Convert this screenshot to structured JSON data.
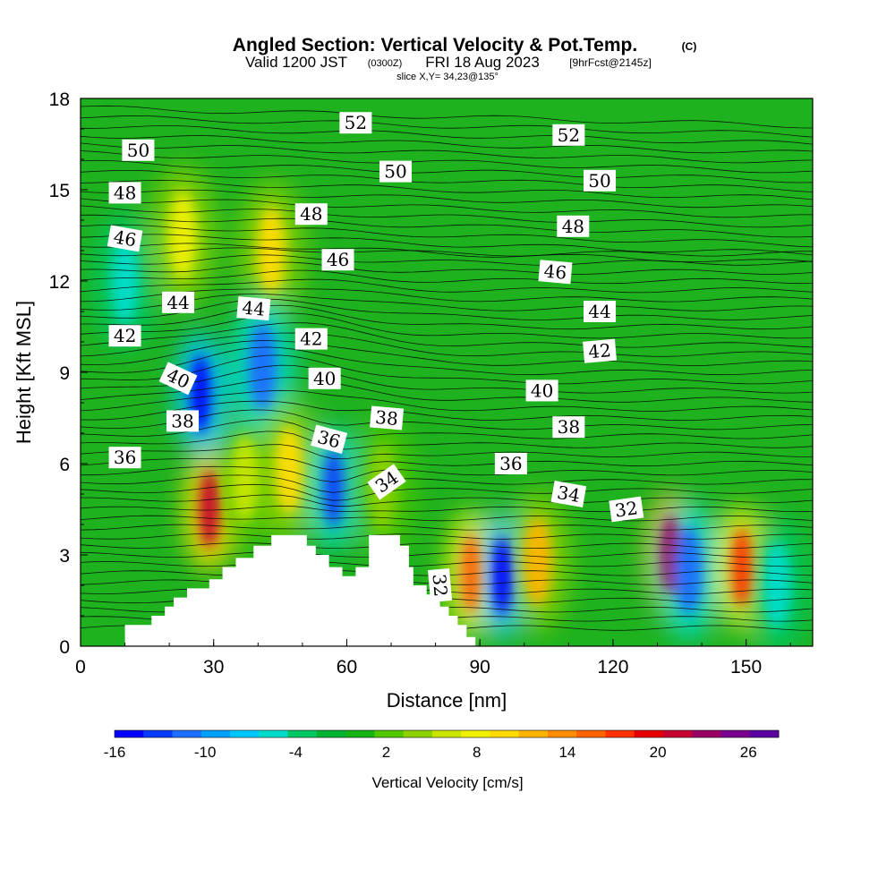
{
  "chart_data": {
    "type": "heatmap",
    "title": "Angled Section: Vertical Velocity & Pot.Temp.",
    "title_tag": "(C)",
    "subtitle_main": "Valid 1200 JST",
    "subtitle_utc": "(0300Z)",
    "subtitle_date": "FRI 18 Aug 2023",
    "subtitle_fcst": "[9hrFcst@2145z]",
    "slice_info": "slice X,Y= 34,23@135°",
    "xlabel": "Distance [nm]",
    "ylabel": "Height [Kft MSL]",
    "xlim": [
      0,
      165
    ],
    "ylim": [
      0,
      18
    ],
    "x_ticks": [
      "0",
      "30",
      "60",
      "90",
      "120",
      "150"
    ],
    "y_ticks": [
      "0",
      "3",
      "6",
      "9",
      "12",
      "15",
      "18"
    ],
    "colorbar": {
      "label": "Vertical Velocity [cm/s]",
      "tick_labels": [
        "-16",
        "-10",
        "-4",
        "2",
        "8",
        "14",
        "20",
        "26"
      ],
      "tick_values": [
        -16,
        -10,
        -4,
        2,
        8,
        14,
        20,
        26
      ],
      "range": [
        -16,
        28
      ],
      "colors": [
        "#0000ff",
        "#0a3cff",
        "#1e6eff",
        "#00a0ff",
        "#00c8ff",
        "#00dccc",
        "#00c864",
        "#00b432",
        "#14b414",
        "#50c800",
        "#8cd200",
        "#c8e600",
        "#f0f000",
        "#ffdc00",
        "#ffb400",
        "#ff8c00",
        "#ff6400",
        "#ff3200",
        "#e60000",
        "#c80032",
        "#9b0064",
        "#78008c",
        "#5a00a0"
      ]
    },
    "vertical_velocity_cells": [
      {
        "x": 10,
        "y": 12,
        "w": -5
      },
      {
        "x": 23,
        "y": 13.5,
        "w": 8
      },
      {
        "x": 29,
        "y": 4.5,
        "w": 22
      },
      {
        "x": 27,
        "y": 8.3,
        "w": -15
      },
      {
        "x": 37,
        "y": 5.5,
        "w": 6
      },
      {
        "x": 43,
        "y": 13,
        "w": 10
      },
      {
        "x": 41,
        "y": 9.2,
        "w": -12
      },
      {
        "x": 47,
        "y": 5.8,
        "w": 9
      },
      {
        "x": 57,
        "y": 5.2,
        "w": -14
      },
      {
        "x": 68,
        "y": 5.2,
        "w": 5
      },
      {
        "x": 88,
        "y": 2.4,
        "w": 16
      },
      {
        "x": 95,
        "y": 2.3,
        "w": -15
      },
      {
        "x": 103,
        "y": 2.8,
        "w": 11
      },
      {
        "x": 133,
        "y": 3,
        "w": 24
      },
      {
        "x": 137,
        "y": 2.5,
        "w": -12
      },
      {
        "x": 149,
        "y": 2.6,
        "w": 18
      },
      {
        "x": 157,
        "y": 2.0,
        "w": -6
      }
    ],
    "theta_labels": [
      {
        "value": "52",
        "x": 62,
        "y": 17.2,
        "rot": 0
      },
      {
        "value": "52",
        "x": 110,
        "y": 16.8,
        "rot": 0
      },
      {
        "value": "50",
        "x": 13,
        "y": 16.3,
        "rot": 0
      },
      {
        "value": "50",
        "x": 71,
        "y": 15.6,
        "rot": 0
      },
      {
        "value": "50",
        "x": 117,
        "y": 15.3,
        "rot": 0
      },
      {
        "value": "48",
        "x": 10,
        "y": 14.9,
        "rot": 0
      },
      {
        "value": "48",
        "x": 52,
        "y": 14.2,
        "rot": 0
      },
      {
        "value": "48",
        "x": 111,
        "y": 13.8,
        "rot": 0
      },
      {
        "value": "46",
        "x": 10,
        "y": 13.4,
        "rot": 10
      },
      {
        "value": "46",
        "x": 58,
        "y": 12.7,
        "rot": 0
      },
      {
        "value": "46",
        "x": 107,
        "y": 12.3,
        "rot": 5
      },
      {
        "value": "44",
        "x": 22,
        "y": 11.3,
        "rot": 0
      },
      {
        "value": "44",
        "x": 39,
        "y": 11.1,
        "rot": 5
      },
      {
        "value": "44",
        "x": 117,
        "y": 11.0,
        "rot": 0
      },
      {
        "value": "42",
        "x": 10,
        "y": 10.2,
        "rot": 0
      },
      {
        "value": "42",
        "x": 52,
        "y": 10.1,
        "rot": 0
      },
      {
        "value": "42",
        "x": 117,
        "y": 9.7,
        "rot": -5
      },
      {
        "value": "40",
        "x": 22,
        "y": 8.8,
        "rot": 25
      },
      {
        "value": "40",
        "x": 55,
        "y": 8.8,
        "rot": 0
      },
      {
        "value": "40",
        "x": 104,
        "y": 8.4,
        "rot": 0
      },
      {
        "value": "38",
        "x": 23,
        "y": 7.4,
        "rot": 0
      },
      {
        "value": "38",
        "x": 69,
        "y": 7.5,
        "rot": 5
      },
      {
        "value": "38",
        "x": 110,
        "y": 7.2,
        "rot": 0
      },
      {
        "value": "36",
        "x": 10,
        "y": 6.2,
        "rot": 0
      },
      {
        "value": "36",
        "x": 56,
        "y": 6.8,
        "rot": 15
      },
      {
        "value": "36",
        "x": 97,
        "y": 6.0,
        "rot": 0
      },
      {
        "value": "34",
        "x": 69,
        "y": 5.4,
        "rot": -35
      },
      {
        "value": "34",
        "x": 110,
        "y": 5.0,
        "rot": 10
      },
      {
        "value": "32",
        "x": 123,
        "y": 4.5,
        "rot": -8
      },
      {
        "value": "32",
        "x": 81,
        "y": 2.0,
        "rot": 85
      }
    ],
    "terrain": [
      [
        10,
        0.7
      ],
      [
        16,
        0.7
      ],
      [
        16,
        1
      ],
      [
        19,
        1
      ],
      [
        19,
        1.3
      ],
      [
        21,
        1.3
      ],
      [
        21,
        1.6
      ],
      [
        24,
        1.6
      ],
      [
        24,
        1.9
      ],
      [
        29,
        1.9
      ],
      [
        29,
        2.2
      ],
      [
        32,
        2.2
      ],
      [
        32,
        2.6
      ],
      [
        35,
        2.6
      ],
      [
        35,
        2.9
      ],
      [
        39,
        2.9
      ],
      [
        39,
        3.3
      ],
      [
        43,
        3.3
      ],
      [
        43,
        3.65
      ],
      [
        51,
        3.65
      ],
      [
        51,
        3.3
      ],
      [
        53,
        3.3
      ],
      [
        53,
        3.0
      ],
      [
        56,
        3.0
      ],
      [
        56,
        2.6
      ],
      [
        59,
        2.6
      ],
      [
        59,
        2.3
      ],
      [
        62,
        2.3
      ],
      [
        62,
        2.6
      ],
      [
        65,
        2.6
      ],
      [
        65,
        3.65
      ],
      [
        72,
        3.65
      ],
      [
        72,
        3.3
      ],
      [
        74,
        3.3
      ],
      [
        74,
        2.6
      ],
      [
        75,
        2.6
      ],
      [
        75,
        2.0
      ],
      [
        78,
        2.0
      ],
      [
        78,
        1.7
      ],
      [
        81,
        1.7
      ],
      [
        81,
        1.3
      ],
      [
        83,
        1.3
      ],
      [
        83,
        1.0
      ],
      [
        85,
        1.0
      ],
      [
        85,
        0.7
      ],
      [
        87,
        0.7
      ],
      [
        87,
        0.3
      ],
      [
        89,
        0.3
      ],
      [
        89,
        0
      ]
    ]
  }
}
